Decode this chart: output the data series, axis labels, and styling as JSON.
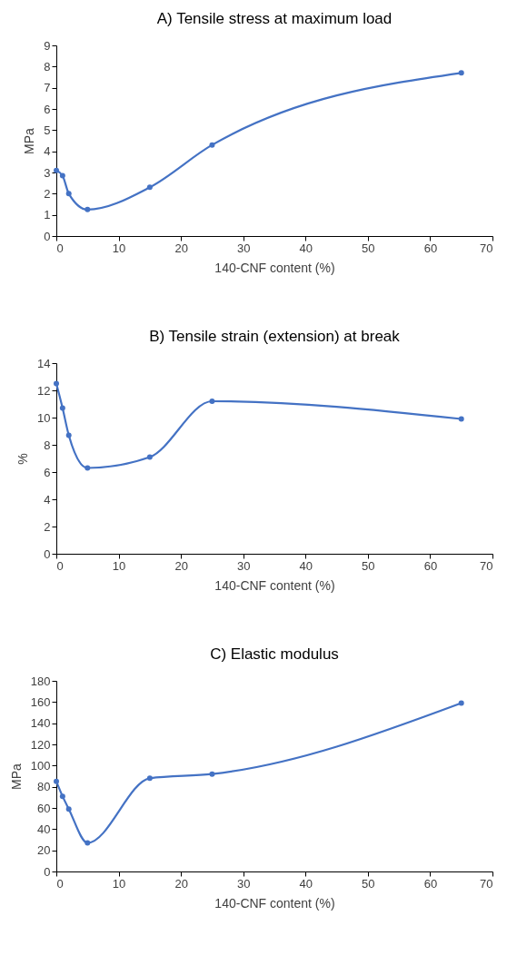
{
  "chart_data": [
    {
      "type": "line",
      "title": "A) Tensile stress at maximum load",
      "xlabel": "140-CNF content (%)",
      "ylabel": "MPa",
      "x": [
        0,
        1,
        2,
        5,
        15,
        25,
        65
      ],
      "values": [
        3.1,
        2.85,
        2.0,
        1.25,
        2.3,
        4.3,
        7.7
      ],
      "color": "#4472c4",
      "xlim": [
        0,
        70
      ],
      "xticks": [
        0,
        10,
        20,
        30,
        40,
        50,
        60,
        70
      ],
      "ylim": [
        0,
        9
      ],
      "yticks": [
        0,
        1,
        2,
        3,
        4,
        5,
        6,
        7,
        8,
        9
      ],
      "grid": false,
      "marker": "circle",
      "line_style": "solid"
    },
    {
      "type": "line",
      "title": "B) Tensile strain (extension) at break",
      "xlabel": "140-CNF content (%)",
      "ylabel": "%",
      "x": [
        0,
        1,
        2,
        5,
        15,
        25,
        65
      ],
      "values": [
        12.5,
        10.7,
        8.7,
        6.3,
        7.1,
        11.2,
        9.9
      ],
      "color": "#4472c4",
      "xlim": [
        0,
        70
      ],
      "xticks": [
        0,
        10,
        20,
        30,
        40,
        50,
        60,
        70
      ],
      "ylim": [
        0,
        14
      ],
      "yticks": [
        0,
        2,
        4,
        6,
        8,
        10,
        12,
        14
      ],
      "grid": false,
      "marker": "circle",
      "line_style": "solid"
    },
    {
      "type": "line",
      "title": "C) Elastic modulus",
      "xlabel": "140-CNF content (%)",
      "ylabel": "MPa",
      "x": [
        0,
        1,
        2,
        5,
        15,
        25,
        65
      ],
      "values": [
        85,
        71,
        59,
        27,
        88,
        92,
        159
      ],
      "color": "#4472c4",
      "xlim": [
        0,
        70
      ],
      "xticks": [
        0,
        10,
        20,
        30,
        40,
        50,
        60,
        70
      ],
      "ylim": [
        0,
        180
      ],
      "yticks": [
        0,
        20,
        40,
        60,
        80,
        100,
        120,
        140,
        160,
        180
      ],
      "grid": false,
      "marker": "circle",
      "line_style": "solid"
    }
  ]
}
